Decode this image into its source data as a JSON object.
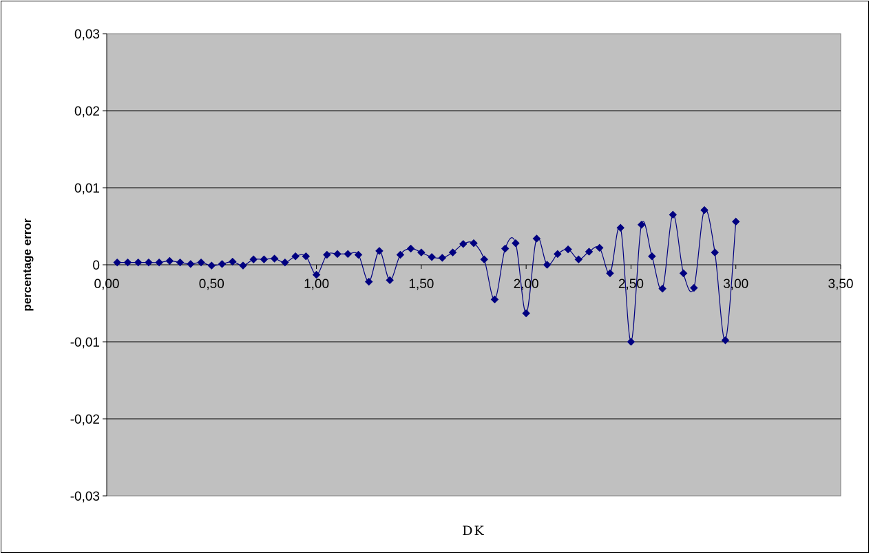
{
  "chart_data": {
    "type": "scatter",
    "title": "",
    "xlabel": "DK",
    "ylabel": "percentage error",
    "xlim": [
      0,
      3.5
    ],
    "ylim": [
      -0.03,
      0.03
    ],
    "x_ticks": [
      "0,00",
      "0,50",
      "1,00",
      "1,50",
      "2,00",
      "2,50",
      "3,00",
      "3,50"
    ],
    "y_ticks": [
      "0,03",
      "0,02",
      "0,01",
      "0",
      "-0,01",
      "-0,02",
      "-0,03"
    ],
    "grid": "horizontal",
    "legend": "none",
    "plot_background": "#c0c0c0",
    "series": [
      {
        "color": "#000080",
        "marker": "diamond",
        "line": "smooth",
        "x": [
          0.05,
          0.1,
          0.15,
          0.2,
          0.25,
          0.3,
          0.35,
          0.4,
          0.45,
          0.5,
          0.55,
          0.6,
          0.65,
          0.7,
          0.75,
          0.8,
          0.85,
          0.9,
          0.95,
          1.0,
          1.05,
          1.1,
          1.15,
          1.2,
          1.25,
          1.3,
          1.35,
          1.4,
          1.45,
          1.5,
          1.55,
          1.6,
          1.65,
          1.7,
          1.75,
          1.8,
          1.85,
          1.9,
          1.95,
          2.0,
          2.05,
          2.1,
          2.15,
          2.2,
          2.25,
          2.3,
          2.35,
          2.4,
          2.45,
          2.5,
          2.55,
          2.6,
          2.65,
          2.7,
          2.75,
          2.8,
          2.85,
          2.9,
          2.95,
          3.0
        ],
        "y": [
          0.0003,
          0.0003,
          0.0003,
          0.0003,
          0.0003,
          0.0005,
          0.0003,
          0.0001,
          0.0003,
          -0.0001,
          0.0001,
          0.0004,
          -0.0001,
          0.0007,
          0.0007,
          0.0008,
          0.0003,
          0.0011,
          0.0011,
          -0.0013,
          0.0013,
          0.0014,
          0.0014,
          0.0013,
          -0.0022,
          0.0018,
          -0.002,
          0.0013,
          0.0021,
          0.0016,
          0.001,
          0.0009,
          0.0016,
          0.0027,
          0.0028,
          0.0007,
          -0.0045,
          0.0021,
          0.0028,
          -0.0063,
          0.0034,
          0.0,
          0.0014,
          0.002,
          0.0007,
          0.0017,
          0.0022,
          -0.0011,
          0.0048,
          -0.01,
          0.0052,
          0.0011,
          -0.0031,
          0.0065,
          -0.0011,
          -0.003,
          0.0071,
          0.0016,
          -0.0098,
          0.0056
        ]
      }
    ]
  }
}
